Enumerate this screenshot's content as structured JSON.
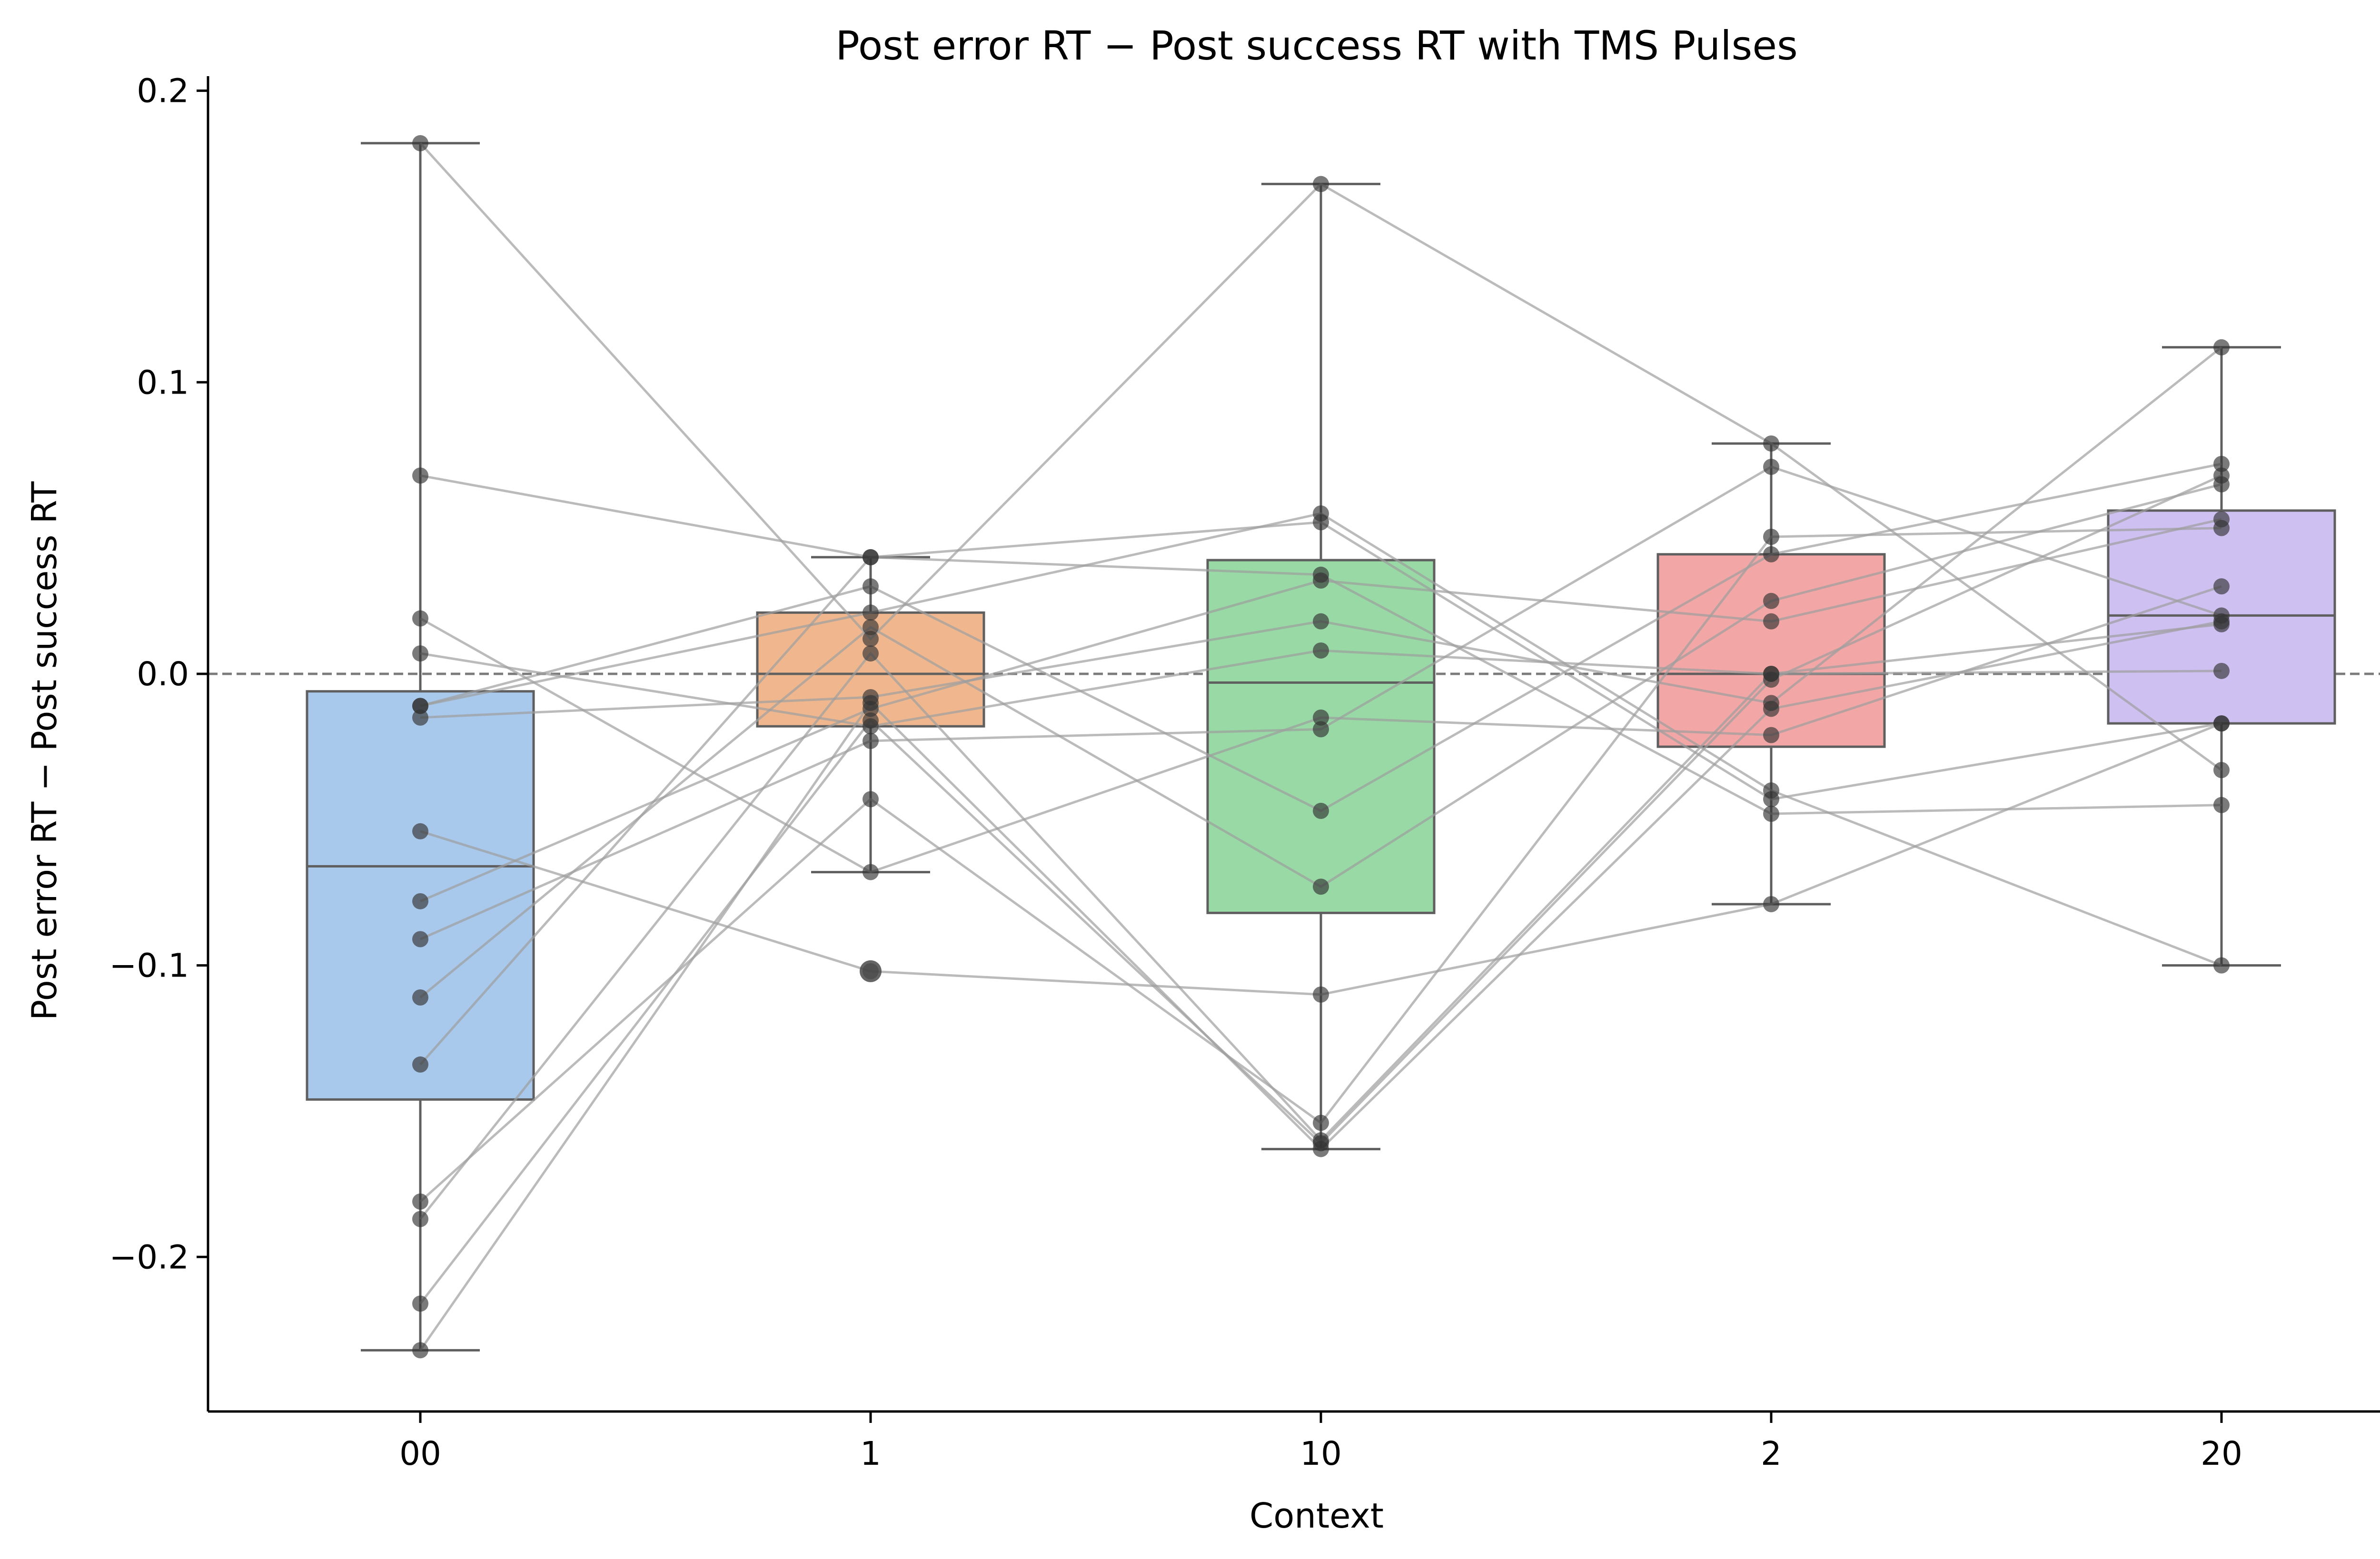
{
  "chart_data": {
    "type": "box",
    "title": "Post error RT − Post success RT with TMS Pulses",
    "xlabel": "Context",
    "ylabel": "Post error RT − Post success RT",
    "ylim": [
      -0.253,
      0.205
    ],
    "yticks": [
      0.2,
      0.1,
      0.0,
      -0.1,
      -0.2
    ],
    "ytick_labels": [
      "0.2",
      "0.1",
      "0.0",
      "−0.1",
      "−0.2"
    ],
    "reference_line": {
      "y": 0.0,
      "style": "dashed"
    },
    "grid": false,
    "categories": [
      "00",
      "1",
      "10",
      "2",
      "20"
    ],
    "box_colors": [
      "#a8c8ec",
      "#f0b78f",
      "#98d9a6",
      "#f2a7a6",
      "#cfc0f2"
    ],
    "boxes": [
      {
        "category": "00",
        "whisker_low": -0.232,
        "q1": -0.146,
        "median": -0.066,
        "q3": -0.006,
        "whisker_high": 0.182,
        "outliers": []
      },
      {
        "category": "1",
        "whisker_low": -0.068,
        "q1": -0.018,
        "median": 0.0,
        "q3": 0.021,
        "whisker_high": 0.04,
        "outliers": [
          -0.102
        ]
      },
      {
        "category": "10",
        "whisker_low": -0.163,
        "q1": -0.082,
        "median": -0.003,
        "q3": 0.039,
        "whisker_high": 0.168,
        "outliers": []
      },
      {
        "category": "2",
        "whisker_low": -0.079,
        "q1": -0.025,
        "median": 0.0,
        "q3": 0.041,
        "whisker_high": 0.079,
        "outliers": []
      },
      {
        "category": "20",
        "whisker_low": -0.1,
        "q1": -0.017,
        "median": 0.02,
        "q3": 0.056,
        "whisker_high": 0.112,
        "outliers": []
      }
    ],
    "subjects": [
      [
        0.182,
        0.012,
        0.168,
        0.079,
        -0.033
      ],
      [
        0.068,
        0.04,
        0.052,
        -0.043,
        -0.017
      ],
      [
        0.019,
        -0.068,
        -0.015,
        -0.021,
        0.03
      ],
      [
        0.007,
        -0.018,
        0.008,
        0.0,
        0.017
      ],
      [
        -0.011,
        0.03,
        -0.047,
        0.041,
        0.072
      ],
      [
        -0.011,
        0.021,
        0.055,
        -0.04,
        -0.1
      ],
      [
        -0.015,
        -0.008,
        0.018,
        -0.01,
        0.112
      ],
      [
        -0.054,
        -0.102,
        -0.11,
        -0.079,
        -0.017
      ],
      [
        -0.078,
        -0.012,
        0.032,
        0.018,
        0.053
      ],
      [
        -0.091,
        -0.023,
        -0.019,
        0.071,
        0.02
      ],
      [
        -0.111,
        0.016,
        -0.073,
        0.025,
        0.065
      ],
      [
        -0.134,
        0.04,
        0.034,
        -0.048,
        -0.045
      ],
      [
        -0.181,
        -0.043,
        -0.154,
        0.047,
        0.05
      ],
      [
        -0.187,
        0.007,
        -0.16,
        0.0,
        0.001
      ],
      [
        -0.216,
        -0.016,
        -0.161,
        -0.002,
        0.068
      ],
      [
        -0.232,
        -0.01,
        -0.163,
        -0.012,
        0.018
      ]
    ]
  }
}
